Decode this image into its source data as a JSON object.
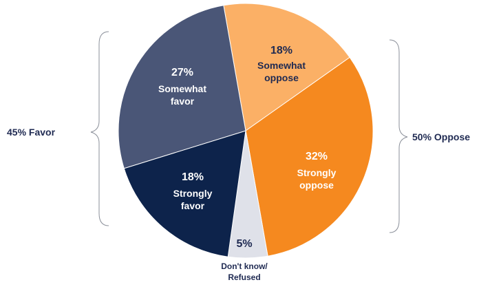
{
  "chart_data": {
    "type": "pie",
    "slices": [
      {
        "percent_label": "18%",
        "lines": [
          "Somewhat",
          "oppose"
        ],
        "value": 18,
        "color": "#fbb066",
        "text_color": "#1f2a52"
      },
      {
        "percent_label": "32%",
        "lines": [
          "Strongly",
          "oppose"
        ],
        "value": 32,
        "color": "#f5891f",
        "text_color": "#ffffff"
      },
      {
        "percent_label": "5%",
        "lines": [
          "Don't know/",
          "Refused"
        ],
        "value": 5,
        "color": "#dfe1e9",
        "text_color": "#1f2a52"
      },
      {
        "percent_label": "18%",
        "lines": [
          "Strongly",
          "favor"
        ],
        "value": 18,
        "color": "#0d234b",
        "text_color": "#ffffff"
      },
      {
        "percent_label": "27%",
        "lines": [
          "Somewhat",
          "favor"
        ],
        "value": 27,
        "color": "#4a5677",
        "text_color": "#ffffff"
      }
    ],
    "groups": [
      {
        "label": "45% Favor",
        "side": "left"
      },
      {
        "label": "50% Oppose",
        "side": "right"
      }
    ]
  }
}
